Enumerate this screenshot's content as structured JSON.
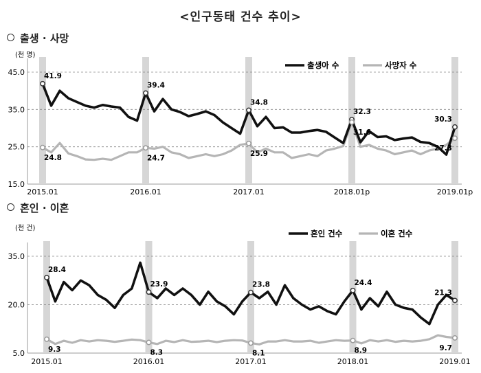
{
  "page_title": "<인구동태 건수 추이>",
  "chart_data": [
    {
      "type": "line",
      "section_title": "출생 · 사망",
      "unit_label": "(천 명)",
      "ylim": [
        15.0,
        45.0
      ],
      "y_ticks": [
        "15.0",
        "25.0",
        "35.0",
        "45.0"
      ],
      "x_tick_labels": [
        "2015.01",
        "2016.01",
        "2017.01",
        "2018.01p",
        "2019.01p"
      ],
      "x": [
        "2015.01",
        "2015.02",
        "2015.03",
        "2015.04",
        "2015.05",
        "2015.06",
        "2015.07",
        "2015.08",
        "2015.09",
        "2015.10",
        "2015.11",
        "2015.12",
        "2016.01",
        "2016.02",
        "2016.03",
        "2016.04",
        "2016.05",
        "2016.06",
        "2016.07",
        "2016.08",
        "2016.09",
        "2016.10",
        "2016.11",
        "2016.12",
        "2017.01",
        "2017.02",
        "2017.03",
        "2017.04",
        "2017.05",
        "2017.06",
        "2017.07",
        "2017.08",
        "2017.09",
        "2017.10",
        "2017.11",
        "2017.12",
        "2018.01",
        "2018.02",
        "2018.03",
        "2018.04",
        "2018.05",
        "2018.06",
        "2018.07",
        "2018.08",
        "2018.09",
        "2018.10",
        "2018.11",
        "2018.12",
        "2019.01"
      ],
      "series": [
        {
          "name": "출생아 수",
          "color": "#111111",
          "values": [
            41.9,
            36.0,
            40.0,
            38.0,
            37.0,
            36.0,
            35.5,
            36.2,
            35.8,
            35.5,
            33.0,
            32.0,
            39.4,
            34.5,
            37.8,
            35.0,
            34.3,
            33.2,
            33.8,
            34.5,
            33.5,
            31.5,
            30.0,
            28.5,
            34.8,
            30.5,
            33.0,
            30.0,
            30.2,
            28.8,
            28.8,
            29.2,
            29.5,
            29.0,
            27.5,
            26.0,
            32.3,
            26.2,
            29.2,
            27.6,
            27.8,
            26.8,
            27.2,
            27.5,
            26.3,
            26.0,
            25.0,
            22.9,
            30.3
          ]
        },
        {
          "name": "사망자 수",
          "color": "#b5b5b5",
          "values": [
            24.8,
            23.5,
            26.0,
            23.2,
            22.5,
            21.6,
            21.5,
            21.8,
            21.5,
            22.5,
            23.5,
            23.5,
            24.7,
            24.5,
            25.0,
            23.5,
            23.0,
            22.0,
            22.5,
            23.0,
            22.5,
            23.0,
            24.0,
            25.5,
            25.9,
            23.5,
            24.5,
            23.5,
            23.5,
            22.0,
            22.5,
            23.0,
            22.5,
            24.0,
            24.5,
            25.2,
            31.6,
            25.0,
            25.5,
            24.5,
            24.0,
            23.0,
            23.5,
            24.0,
            23.0,
            24.0,
            24.5,
            25.5,
            27.3
          ]
        }
      ],
      "annotations": [
        {
          "series": 0,
          "index": 0,
          "label": "41.9"
        },
        {
          "series": 0,
          "index": 12,
          "label": "39.4"
        },
        {
          "series": 0,
          "index": 24,
          "label": "34.8"
        },
        {
          "series": 0,
          "index": 36,
          "label": "32.3"
        },
        {
          "series": 0,
          "index": 48,
          "label": "30.3"
        },
        {
          "series": 1,
          "index": 0,
          "label": "24.8"
        },
        {
          "series": 1,
          "index": 12,
          "label": "24.7"
        },
        {
          "series": 1,
          "index": 24,
          "label": "25.9"
        },
        {
          "series": 1,
          "index": 36,
          "label": "31.6"
        },
        {
          "series": 1,
          "index": 48,
          "label": "27.3"
        }
      ],
      "grid": "horizontal-dashed",
      "legend": "top-right"
    },
    {
      "type": "line",
      "section_title": "혼인 · 이혼",
      "unit_label": "(천 건)",
      "ylim": [
        5.0,
        35.0
      ],
      "y_ticks": [
        "5.0",
        "20.0",
        "35.0"
      ],
      "x_tick_labels": [
        "2015.01",
        "2016.01",
        "2017.01",
        "2018.01",
        "2019.01"
      ],
      "x": [
        "2015.01",
        "2015.02",
        "2015.03",
        "2015.04",
        "2015.05",
        "2015.06",
        "2015.07",
        "2015.08",
        "2015.09",
        "2015.10",
        "2015.11",
        "2015.12",
        "2016.01",
        "2016.02",
        "2016.03",
        "2016.04",
        "2016.05",
        "2016.06",
        "2016.07",
        "2016.08",
        "2016.09",
        "2016.10",
        "2016.11",
        "2016.12",
        "2017.01",
        "2017.02",
        "2017.03",
        "2017.04",
        "2017.05",
        "2017.06",
        "2017.07",
        "2017.08",
        "2017.09",
        "2017.10",
        "2017.11",
        "2017.12",
        "2018.01",
        "2018.02",
        "2018.03",
        "2018.04",
        "2018.05",
        "2018.06",
        "2018.07",
        "2018.08",
        "2018.09",
        "2018.10",
        "2018.11",
        "2018.12",
        "2019.01"
      ],
      "series": [
        {
          "name": "혼인 건수",
          "color": "#111111",
          "values": [
            28.4,
            21.0,
            27.0,
            24.5,
            27.5,
            26.0,
            23.0,
            21.5,
            19.0,
            23.0,
            25.0,
            33.0,
            23.9,
            22.0,
            25.0,
            23.0,
            25.0,
            23.0,
            20.0,
            24.0,
            21.0,
            19.5,
            17.0,
            21.0,
            23.8,
            22.0,
            24.0,
            20.0,
            26.0,
            22.0,
            20.0,
            18.5,
            19.5,
            18.0,
            17.0,
            21.0,
            24.4,
            18.5,
            22.0,
            19.5,
            24.0,
            20.0,
            19.0,
            18.5,
            16.0,
            14.0,
            20.0,
            23.0,
            21.3
          ]
        },
        {
          "name": "이혼 건수",
          "color": "#b5b5b5",
          "values": [
            9.3,
            7.8,
            8.8,
            8.2,
            9.0,
            8.6,
            9.0,
            8.8,
            8.5,
            8.8,
            9.2,
            9.0,
            8.3,
            7.8,
            8.8,
            8.4,
            9.0,
            8.5,
            8.6,
            8.8,
            8.4,
            8.8,
            9.0,
            8.9,
            8.1,
            7.7,
            8.6,
            8.6,
            9.0,
            8.6,
            8.6,
            8.8,
            8.2,
            8.6,
            9.0,
            8.8,
            8.9,
            8.0,
            9.0,
            8.6,
            9.0,
            8.5,
            8.8,
            8.6,
            8.8,
            9.3,
            10.5,
            10.0,
            9.7
          ]
        }
      ],
      "annotations": [
        {
          "series": 0,
          "index": 0,
          "label": "28.4"
        },
        {
          "series": 0,
          "index": 12,
          "label": "23.9"
        },
        {
          "series": 0,
          "index": 24,
          "label": "23.8"
        },
        {
          "series": 0,
          "index": 36,
          "label": "24.4"
        },
        {
          "series": 0,
          "index": 48,
          "label": "21.3"
        },
        {
          "series": 1,
          "index": 0,
          "label": "9.3"
        },
        {
          "series": 1,
          "index": 12,
          "label": "8.3"
        },
        {
          "series": 1,
          "index": 24,
          "label": "8.1"
        },
        {
          "series": 1,
          "index": 36,
          "label": "8.9"
        },
        {
          "series": 1,
          "index": 48,
          "label": "9.7"
        }
      ],
      "grid": "horizontal-dashed",
      "legend": "top-right"
    }
  ]
}
